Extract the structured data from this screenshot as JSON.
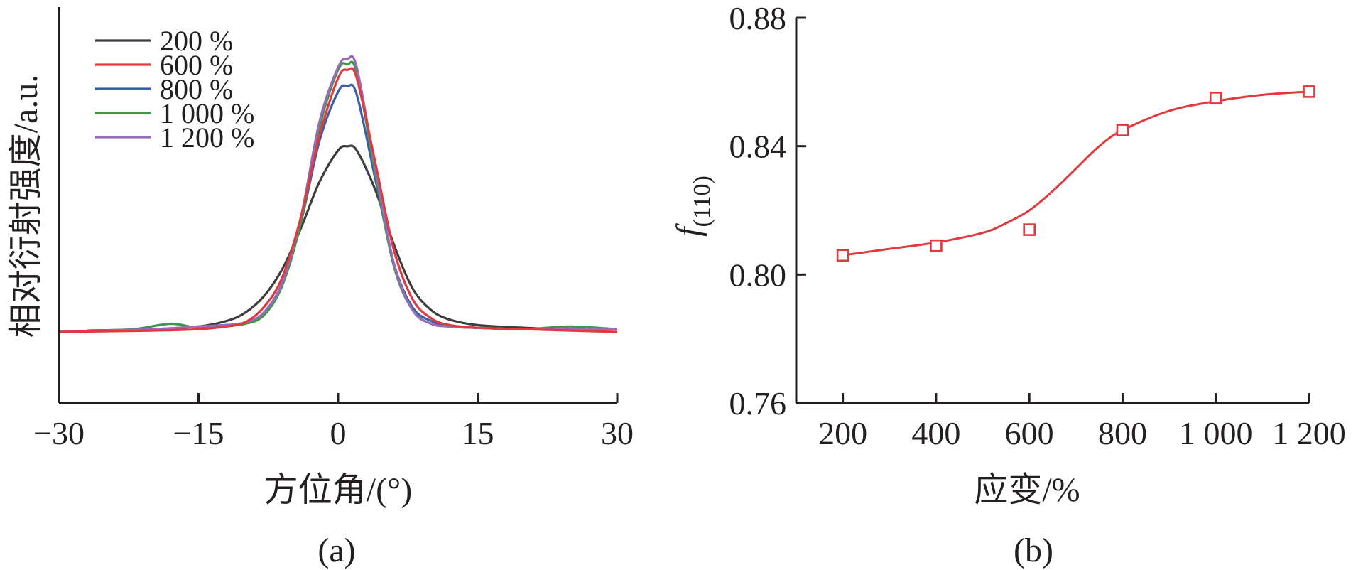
{
  "chart_data": [
    {
      "panel": "(a)",
      "type": "line",
      "xlabel": "方位角/(°)",
      "ylabel": "相对衍射强度/a.u.",
      "xlim": [
        -30,
        30
      ],
      "xticks": [
        -30,
        -15,
        0,
        15,
        30
      ],
      "xtick_labels": [
        "−30",
        "−15",
        "0",
        "15",
        "30"
      ],
      "y_tick_labels_shown": false,
      "ylim": [
        -0.2,
        1.15
      ],
      "grid": false,
      "legend_position": "top-left",
      "series": [
        {
          "name": "200 %",
          "color": "#3d3d3d",
          "x": [
            -27,
            -20,
            -15,
            -12,
            -10,
            -8,
            -6,
            -4,
            -2,
            0,
            1,
            2,
            4,
            6,
            8,
            10,
            12,
            15,
            20,
            25,
            30
          ],
          "y": [
            0.005,
            0.01,
            0.02,
            0.04,
            0.07,
            0.13,
            0.23,
            0.38,
            0.55,
            0.665,
            0.68,
            0.665,
            0.52,
            0.32,
            0.16,
            0.08,
            0.045,
            0.025,
            0.015,
            0.01,
            0.01
          ]
        },
        {
          "name": "600 %",
          "color": "#e03a3e",
          "x": [
            -30,
            -20,
            -15,
            -12,
            -10,
            -8,
            -6,
            -4,
            -2,
            0,
            1,
            2,
            4,
            6,
            8,
            10,
            12,
            15,
            20,
            25,
            30
          ],
          "y": [
            0.0,
            0.005,
            0.01,
            0.02,
            0.035,
            0.09,
            0.2,
            0.42,
            0.72,
            0.93,
            0.96,
            0.93,
            0.62,
            0.3,
            0.12,
            0.05,
            0.025,
            0.015,
            0.01,
            0.005,
            0.0
          ]
        },
        {
          "name": "800 %",
          "color": "#3a5fa8",
          "x": [
            -30,
            -20,
            -15,
            -12,
            -10,
            -8,
            -6,
            -4,
            -2,
            0,
            1,
            2,
            4,
            6,
            8,
            10,
            12,
            15,
            20,
            25,
            30
          ],
          "y": [
            0.0,
            0.01,
            0.02,
            0.025,
            0.03,
            0.07,
            0.18,
            0.4,
            0.7,
            0.88,
            0.9,
            0.87,
            0.56,
            0.25,
            0.09,
            0.04,
            0.02,
            0.015,
            0.01,
            0.01,
            0.01
          ]
        },
        {
          "name": "1 000 %",
          "color": "#3a9a4a",
          "x": [
            -27,
            -22,
            -18,
            -15,
            -12,
            -10,
            -8,
            -6,
            -4,
            -2,
            0,
            1,
            2,
            4,
            6,
            8,
            10,
            12,
            15,
            20,
            25,
            30
          ],
          "y": [
            0.005,
            0.01,
            0.03,
            0.015,
            0.025,
            0.03,
            0.06,
            0.17,
            0.4,
            0.75,
            0.96,
            0.98,
            0.95,
            0.58,
            0.24,
            0.08,
            0.03,
            0.02,
            0.015,
            0.01,
            0.02,
            0.01
          ]
        },
        {
          "name": "1 200 %",
          "color": "#9a6bb8",
          "x": [
            -30,
            -20,
            -15,
            -12,
            -10,
            -8,
            -6,
            -4,
            -2,
            0,
            1,
            2,
            4,
            6,
            8,
            10,
            12,
            15,
            20,
            25,
            30
          ],
          "y": [
            0.0,
            0.01,
            0.02,
            0.025,
            0.035,
            0.07,
            0.18,
            0.42,
            0.77,
            0.97,
            1.0,
            0.97,
            0.6,
            0.25,
            0.08,
            0.03,
            0.02,
            0.015,
            0.01,
            0.01,
            0.01
          ]
        }
      ],
      "caption": "(a)"
    },
    {
      "panel": "(b)",
      "type": "scatter",
      "xlabel": "应变/%",
      "ylabel": "f(110)",
      "ylabel_main": "f",
      "ylabel_sub": "(110)",
      "xlim": [
        100,
        1200
      ],
      "ylim": [
        0.76,
        0.88
      ],
      "xticks": [
        200,
        400,
        600,
        800,
        1000,
        1200
      ],
      "xtick_labels": [
        "200",
        "400",
        "600",
        "800",
        "1 000",
        "1 200"
      ],
      "yticks": [
        0.76,
        0.8,
        0.84,
        0.88
      ],
      "ytick_labels": [
        "0.76",
        "0.80",
        "0.84",
        "0.88"
      ],
      "grid": false,
      "color": "#e03a3e",
      "points": {
        "x": [
          200,
          400,
          600,
          800,
          1000,
          1200
        ],
        "y": [
          0.806,
          0.809,
          0.814,
          0.845,
          0.855,
          0.857
        ]
      },
      "fit_curve": {
        "x": [
          200,
          300,
          400,
          500,
          550,
          600,
          650,
          700,
          750,
          800,
          900,
          1000,
          1100,
          1200
        ],
        "y": [
          0.806,
          0.808,
          0.81,
          0.813,
          0.816,
          0.82,
          0.826,
          0.833,
          0.84,
          0.845,
          0.851,
          0.854,
          0.856,
          0.857
        ]
      },
      "caption": "(b)"
    }
  ]
}
